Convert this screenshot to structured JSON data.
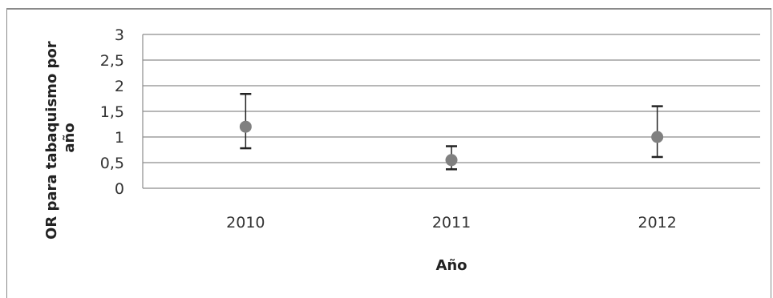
{
  "chart_data": {
    "type": "scatter",
    "title": "",
    "xlabel": "Año",
    "ylabel_lines": [
      "OR para tabaquismo por",
      "año"
    ],
    "categories": [
      "2010",
      "2011",
      "2012"
    ],
    "y_ticks": [
      "0",
      "0,5",
      "1",
      "1,5",
      "2",
      "2,5",
      "3"
    ],
    "ylim": [
      0,
      3
    ],
    "grid": true,
    "legend": "none",
    "series": [
      {
        "values": [
          1.2,
          0.55,
          1.0
        ],
        "lower": [
          0.78,
          0.37,
          0.61
        ],
        "upper": [
          1.84,
          0.82,
          1.6
        ],
        "color": "#808080"
      }
    ]
  }
}
